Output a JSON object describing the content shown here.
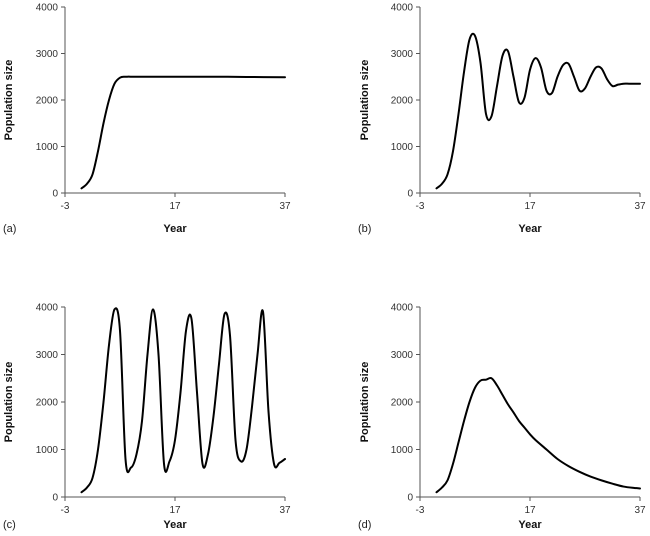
{
  "chart_data": [
    {
      "type": "line",
      "panel_label": "(a)",
      "title": "",
      "xlabel": "Year",
      "ylabel": "Population size",
      "xlim": [
        -3,
        37
      ],
      "ylim": [
        0,
        4000
      ],
      "xticks": [
        -3,
        17,
        37
      ],
      "yticks": [
        0,
        1000,
        2000,
        3000,
        4000
      ],
      "series": [
        {
          "name": "Population",
          "x": [
            0,
            1,
            2,
            3,
            4,
            5,
            6,
            7,
            8,
            10,
            15,
            20,
            25,
            30,
            37
          ],
          "y": [
            100,
            200,
            400,
            900,
            1500,
            2000,
            2350,
            2480,
            2500,
            2500,
            2500,
            2500,
            2500,
            2495,
            2490
          ]
        }
      ]
    },
    {
      "type": "line",
      "panel_label": "(b)",
      "title": "",
      "xlabel": "Year",
      "ylabel": "Population size",
      "xlim": [
        -3,
        37
      ],
      "ylim": [
        0,
        4000
      ],
      "xticks": [
        -3,
        17,
        37
      ],
      "yticks": [
        0,
        1000,
        2000,
        3000,
        4000
      ],
      "series": [
        {
          "name": "Population",
          "x": [
            0,
            1,
            2,
            3,
            4,
            5,
            6,
            7,
            8,
            9,
            10,
            11,
            12,
            13,
            14,
            15,
            16,
            17,
            18,
            19,
            20,
            21,
            22,
            23,
            24,
            25,
            26,
            27,
            28,
            29,
            30,
            31,
            32,
            33,
            34,
            35,
            36,
            37
          ],
          "y": [
            100,
            200,
            400,
            900,
            1700,
            2600,
            3300,
            3380,
            2800,
            1700,
            1650,
            2300,
            2950,
            3050,
            2500,
            1950,
            2050,
            2650,
            2900,
            2700,
            2200,
            2150,
            2500,
            2750,
            2780,
            2500,
            2200,
            2250,
            2500,
            2700,
            2680,
            2450,
            2300,
            2330,
            2350,
            2350,
            2350,
            2350
          ]
        }
      ]
    },
    {
      "type": "line",
      "panel_label": "(c)",
      "title": "",
      "xlabel": "Year",
      "ylabel": "Population size",
      "xlim": [
        -3,
        37
      ],
      "ylim": [
        0,
        4000
      ],
      "xticks": [
        -3,
        17,
        37
      ],
      "yticks": [
        0,
        1000,
        2000,
        3000,
        4000
      ],
      "series": [
        {
          "name": "Population",
          "x": [
            0,
            1,
            2,
            3,
            4,
            5,
            6,
            7,
            8,
            9,
            10,
            11,
            12,
            13,
            14,
            15,
            16,
            17,
            18,
            19,
            20,
            21,
            22,
            23,
            24,
            25,
            26,
            27,
            28,
            29,
            30,
            31,
            32,
            33,
            34,
            35,
            36,
            37
          ],
          "y": [
            100,
            200,
            400,
            1000,
            2000,
            3200,
            3950,
            3500,
            800,
            620,
            900,
            1600,
            3000,
            3950,
            3000,
            700,
            750,
            1200,
            2200,
            3500,
            3750,
            2200,
            700,
            900,
            1700,
            2800,
            3850,
            3400,
            1200,
            750,
            1000,
            1900,
            3000,
            3900,
            1800,
            700,
            720,
            800
          ]
        }
      ]
    },
    {
      "type": "line",
      "panel_label": "(d)",
      "title": "",
      "xlabel": "Year",
      "ylabel": "Population size",
      "xlim": [
        -3,
        37
      ],
      "ylim": [
        0,
        4000
      ],
      "xticks": [
        -3,
        17,
        37
      ],
      "yticks": [
        0,
        1000,
        2000,
        3000,
        4000
      ],
      "series": [
        {
          "name": "Population",
          "x": [
            0,
            1,
            2,
            3,
            4,
            5,
            6,
            7,
            8,
            9,
            10,
            11,
            12,
            13,
            14,
            15,
            16,
            17,
            18,
            20,
            22,
            24,
            26,
            28,
            30,
            32,
            34,
            36,
            37
          ],
          "y": [
            100,
            200,
            350,
            700,
            1150,
            1600,
            2000,
            2300,
            2450,
            2470,
            2500,
            2350,
            2150,
            1950,
            1780,
            1600,
            1460,
            1320,
            1200,
            1000,
            800,
            650,
            530,
            430,
            350,
            280,
            220,
            190,
            180
          ]
        }
      ]
    }
  ]
}
